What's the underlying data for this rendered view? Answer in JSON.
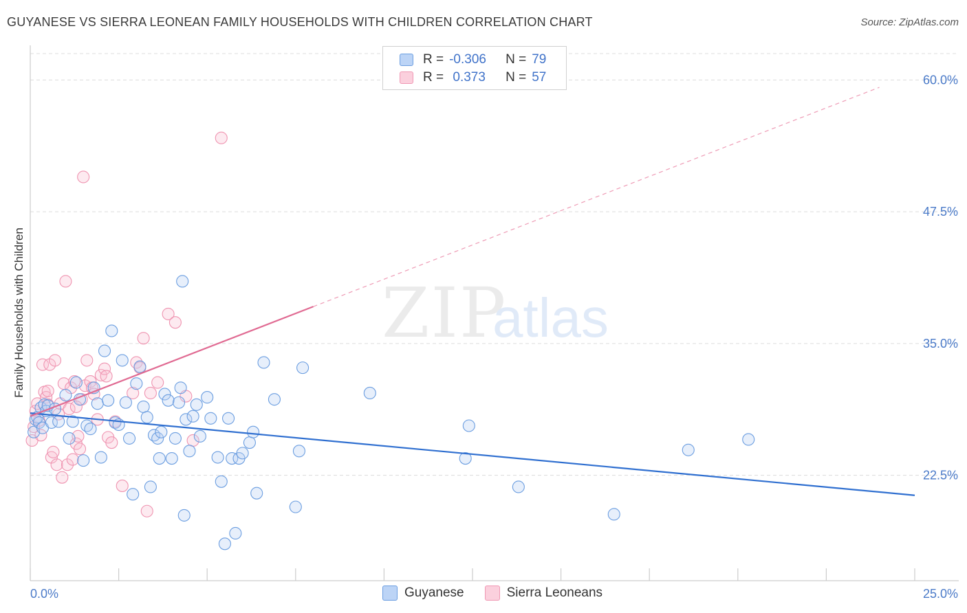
{
  "header": {
    "title": "GUYANESE VS SIERRA LEONEAN FAMILY HOUSEHOLDS WITH CHILDREN CORRELATION CHART",
    "source": "Source: ZipAtlas.com"
  },
  "watermark": {
    "zip": "ZIP",
    "atlas": "atlas"
  },
  "legend": {
    "rows": [
      {
        "r_label": "R =",
        "r_value": "-0.306",
        "n_label": "N =",
        "n_value": "79",
        "color": "#6a9de0"
      },
      {
        "r_label": "R =",
        "r_value": " 0.373",
        "n_label": "N =",
        "n_value": "57",
        "color": "#f097b3"
      }
    ]
  },
  "bottom_legend": [
    {
      "label": "Guyanese",
      "color": "#6a9de0"
    },
    {
      "label": "Sierra Leoneans",
      "color": "#f097b3"
    }
  ],
  "chart_data": {
    "type": "scatter",
    "title": "GUYANESE VS SIERRA LEONEAN FAMILY HOUSEHOLDS WITH CHILDREN CORRELATION CHART",
    "xlabel": "",
    "ylabel": "Family Households with Children",
    "xlim": [
      0,
      25
    ],
    "ylim": [
      12.5,
      62.5
    ],
    "x_tick_labels": [
      "0.0%",
      "25.0%"
    ],
    "y_tick_labels": [
      "22.5%",
      "35.0%",
      "47.5%",
      "60.0%"
    ],
    "y_ticks": [
      22.5,
      35.0,
      47.5,
      60.0
    ],
    "grid": true,
    "legend_position": "top-center",
    "series": [
      {
        "name": "Guyanese",
        "color": "#6a9de0",
        "trend": {
          "x0": 0.0,
          "y0": 28.4,
          "x1": 25.0,
          "y1": 20.6
        },
        "points": [
          [
            0.1,
            26.6
          ],
          [
            0.15,
            27.8
          ],
          [
            0.2,
            28.0
          ],
          [
            0.25,
            27.5
          ],
          [
            0.3,
            28.9
          ],
          [
            0.35,
            27.0
          ],
          [
            0.4,
            29.2
          ],
          [
            0.45,
            28.6
          ],
          [
            0.5,
            29.1
          ],
          [
            0.6,
            27.5
          ],
          [
            0.7,
            28.8
          ],
          [
            0.8,
            27.6
          ],
          [
            1.0,
            30.1
          ],
          [
            1.1,
            26.0
          ],
          [
            1.2,
            27.6
          ],
          [
            1.3,
            31.3
          ],
          [
            1.4,
            29.7
          ],
          [
            1.5,
            23.9
          ],
          [
            1.6,
            27.2
          ],
          [
            1.7,
            26.9
          ],
          [
            1.8,
            30.8
          ],
          [
            1.9,
            29.3
          ],
          [
            2.0,
            24.2
          ],
          [
            2.1,
            34.3
          ],
          [
            2.2,
            29.6
          ],
          [
            2.3,
            36.2
          ],
          [
            2.4,
            27.5
          ],
          [
            2.5,
            27.3
          ],
          [
            2.6,
            33.4
          ],
          [
            2.7,
            29.4
          ],
          [
            2.8,
            26.0
          ],
          [
            2.9,
            20.7
          ],
          [
            3.0,
            31.2
          ],
          [
            3.1,
            32.8
          ],
          [
            3.2,
            29.0
          ],
          [
            3.3,
            28.0
          ],
          [
            3.4,
            21.4
          ],
          [
            3.5,
            26.3
          ],
          [
            3.6,
            26.0
          ],
          [
            3.65,
            24.1
          ],
          [
            3.7,
            26.6
          ],
          [
            3.8,
            30.2
          ],
          [
            3.9,
            29.6
          ],
          [
            4.0,
            24.1
          ],
          [
            4.1,
            26.0
          ],
          [
            4.2,
            29.4
          ],
          [
            4.25,
            30.8
          ],
          [
            4.3,
            40.9
          ],
          [
            4.35,
            18.7
          ],
          [
            4.4,
            27.8
          ],
          [
            4.5,
            24.8
          ],
          [
            4.6,
            28.1
          ],
          [
            4.7,
            29.2
          ],
          [
            4.8,
            26.2
          ],
          [
            5.0,
            29.9
          ],
          [
            5.1,
            27.9
          ],
          [
            5.3,
            24.2
          ],
          [
            5.4,
            21.9
          ],
          [
            5.5,
            16.0
          ],
          [
            5.6,
            27.9
          ],
          [
            5.7,
            24.1
          ],
          [
            5.8,
            17.0
          ],
          [
            5.9,
            24.1
          ],
          [
            6.0,
            24.6
          ],
          [
            6.2,
            25.6
          ],
          [
            6.3,
            26.6
          ],
          [
            6.4,
            20.8
          ],
          [
            6.6,
            33.2
          ],
          [
            6.9,
            29.7
          ],
          [
            7.5,
            19.5
          ],
          [
            7.6,
            24.8
          ],
          [
            7.7,
            32.7
          ],
          [
            9.6,
            30.3
          ],
          [
            12.3,
            24.1
          ],
          [
            12.4,
            27.2
          ],
          [
            13.8,
            21.4
          ],
          [
            16.5,
            18.8
          ],
          [
            18.6,
            24.9
          ],
          [
            20.3,
            25.9
          ]
        ]
      },
      {
        "name": "Sierra Leoneans",
        "color": "#f097b3",
        "trend": {
          "x0": 0.0,
          "y0": 28.1,
          "x1": 8.0,
          "y1": 38.5,
          "dashed_to_x": 24.0,
          "dashed_to_y": 59.3
        },
        "points": [
          [
            0.05,
            25.8
          ],
          [
            0.1,
            27.1
          ],
          [
            0.15,
            28.6
          ],
          [
            0.2,
            29.3
          ],
          [
            0.25,
            27.7
          ],
          [
            0.3,
            26.3
          ],
          [
            0.35,
            33.0
          ],
          [
            0.4,
            30.4
          ],
          [
            0.45,
            29.9
          ],
          [
            0.5,
            30.5
          ],
          [
            0.55,
            33.0
          ],
          [
            0.6,
            24.2
          ],
          [
            0.65,
            24.7
          ],
          [
            0.7,
            33.4
          ],
          [
            0.75,
            23.5
          ],
          [
            0.8,
            28.3
          ],
          [
            0.85,
            29.3
          ],
          [
            0.9,
            22.3
          ],
          [
            0.95,
            31.2
          ],
          [
            1.0,
            40.9
          ],
          [
            1.05,
            23.5
          ],
          [
            1.1,
            28.8
          ],
          [
            1.15,
            30.8
          ],
          [
            1.2,
            24.0
          ],
          [
            1.25,
            31.4
          ],
          [
            1.3,
            25.5
          ],
          [
            1.35,
            26.2
          ],
          [
            1.4,
            25.0
          ],
          [
            1.45,
            29.7
          ],
          [
            1.5,
            50.8
          ],
          [
            1.55,
            31.0
          ],
          [
            1.6,
            33.4
          ],
          [
            1.7,
            31.4
          ],
          [
            1.75,
            30.8
          ],
          [
            1.8,
            30.2
          ],
          [
            1.9,
            27.8
          ],
          [
            2.0,
            32.0
          ],
          [
            2.1,
            32.6
          ],
          [
            2.15,
            31.9
          ],
          [
            2.2,
            26.1
          ],
          [
            2.3,
            25.6
          ],
          [
            2.4,
            27.6
          ],
          [
            2.6,
            21.5
          ],
          [
            2.9,
            30.3
          ],
          [
            3.0,
            33.2
          ],
          [
            3.1,
            32.7
          ],
          [
            3.2,
            35.5
          ],
          [
            3.3,
            19.1
          ],
          [
            3.4,
            30.3
          ],
          [
            3.6,
            31.3
          ],
          [
            3.9,
            37.8
          ],
          [
            4.1,
            37.0
          ],
          [
            4.4,
            30.0
          ],
          [
            4.6,
            25.8
          ],
          [
            5.4,
            54.5
          ],
          [
            0.5,
            29.2
          ],
          [
            1.3,
            29.0
          ]
        ]
      }
    ]
  }
}
